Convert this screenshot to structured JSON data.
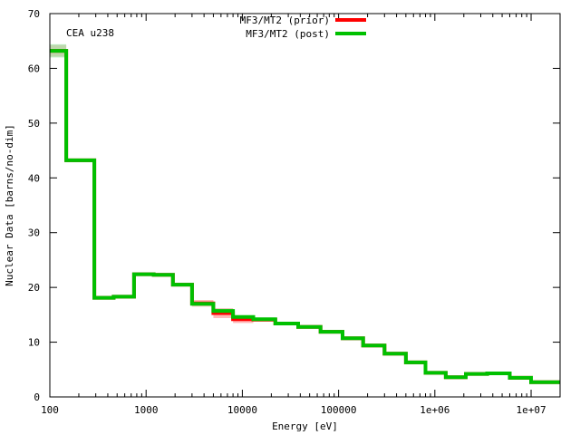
{
  "chart_data": {
    "type": "line",
    "title": "",
    "annotation": "CEA u238",
    "xlabel": "Energy [eV]",
    "ylabel": "Nuclear Data [barns/no-dim]",
    "x_scale": "log",
    "xlim": [
      100,
      20000000
    ],
    "ylim": [
      0,
      70
    ],
    "grid": false,
    "legend_position": "top-center",
    "x_ticks": [
      {
        "value": 100,
        "label": "100"
      },
      {
        "value": 1000,
        "label": "1000"
      },
      {
        "value": 10000,
        "label": "10000"
      },
      {
        "value": 100000,
        "label": "100000"
      },
      {
        "value": 1000000,
        "label": "1e+06"
      },
      {
        "value": 10000000,
        "label": "1e+07"
      }
    ],
    "y_ticks": [
      {
        "value": 0,
        "label": "0"
      },
      {
        "value": 10,
        "label": "10"
      },
      {
        "value": 20,
        "label": "20"
      },
      {
        "value": 30,
        "label": "30"
      },
      {
        "value": 40,
        "label": "40"
      },
      {
        "value": 50,
        "label": "50"
      },
      {
        "value": 60,
        "label": "60"
      },
      {
        "value": 70,
        "label": "70"
      }
    ],
    "bin_edges": [
      100,
      148,
      290,
      460,
      750,
      1200,
      1900,
      3000,
      5000,
      8000,
      13000,
      22000,
      38000,
      65000,
      110000,
      180000,
      300000,
      500000,
      800000,
      1300000,
      2100000,
      3500000,
      6000000,
      10000000,
      20000000
    ],
    "series": [
      {
        "name": "MF3/MT2 (prior)",
        "color": "#ff0000",
        "band_color": "#ffb0b0",
        "values": [
          63.2,
          43.2,
          18.1,
          18.3,
          22.4,
          22.3,
          20.5,
          17.1,
          15.3,
          14.2,
          14.1,
          13.4,
          12.8,
          11.9,
          10.7,
          9.4,
          7.9,
          6.3,
          4.4,
          3.6,
          4.2,
          4.3,
          3.5,
          2.7
        ],
        "uncertainty": [
          1.0,
          0.3,
          0.3,
          0.3,
          0.3,
          0.3,
          0.3,
          0.6,
          0.9,
          0.7,
          0.3,
          0.3,
          0.3,
          0.3,
          0.3,
          0.3,
          0.3,
          0.3,
          0.3,
          0.3,
          0.3,
          0.3,
          0.3,
          0.3
        ]
      },
      {
        "name": "MF3/MT2 (post)",
        "color": "#00c000",
        "band_color": "#a8e0a8",
        "values": [
          63.2,
          43.2,
          18.1,
          18.3,
          22.4,
          22.3,
          20.5,
          17.0,
          15.7,
          14.6,
          14.2,
          13.4,
          12.8,
          11.9,
          10.7,
          9.4,
          7.9,
          6.3,
          4.4,
          3.6,
          4.2,
          4.3,
          3.5,
          2.7
        ],
        "uncertainty": [
          1.2,
          0.3,
          0.3,
          0.3,
          0.3,
          0.3,
          0.3,
          0.4,
          0.4,
          0.3,
          0.3,
          0.3,
          0.3,
          0.3,
          0.3,
          0.3,
          0.3,
          0.3,
          0.3,
          0.3,
          0.3,
          0.3,
          0.3,
          0.3
        ]
      }
    ]
  }
}
